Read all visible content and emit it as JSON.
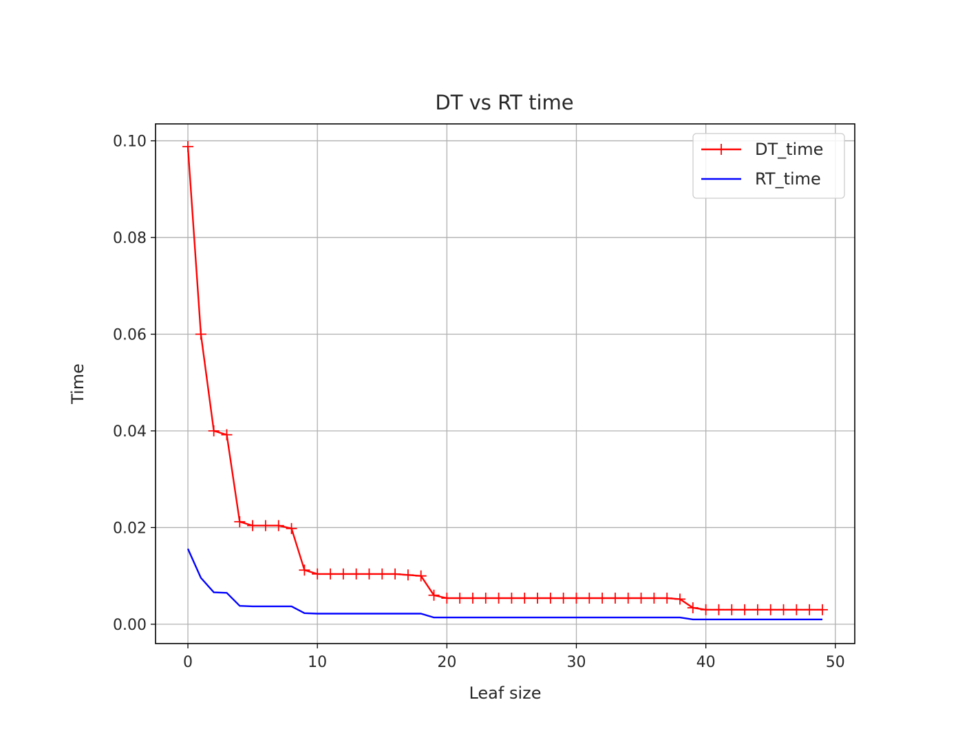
{
  "chart_data": {
    "type": "line",
    "title": "DT vs RT time",
    "xlabel": "Leaf size",
    "ylabel": "Time",
    "xlim": [
      -2.5,
      51.5
    ],
    "ylim": [
      -0.004,
      0.1035
    ],
    "xticks": [
      0,
      10,
      20,
      30,
      40,
      50
    ],
    "xtick_labels": [
      "0",
      "10",
      "20",
      "30",
      "40",
      "50"
    ],
    "yticks": [
      0.0,
      0.02,
      0.04,
      0.06,
      0.08,
      0.1
    ],
    "ytick_labels": [
      "0.00",
      "0.02",
      "0.04",
      "0.06",
      "0.08",
      "0.10"
    ],
    "grid": true,
    "legend_position": "top-right",
    "x": [
      0,
      1,
      2,
      3,
      4,
      5,
      6,
      7,
      8,
      9,
      10,
      11,
      12,
      13,
      14,
      15,
      16,
      17,
      18,
      19,
      20,
      21,
      22,
      23,
      24,
      25,
      26,
      27,
      28,
      29,
      30,
      31,
      32,
      33,
      34,
      35,
      36,
      37,
      38,
      39,
      40,
      41,
      42,
      43,
      44,
      45,
      46,
      47,
      48,
      49
    ],
    "series": [
      {
        "name": "DT_time",
        "color": "#ff0000",
        "marker": "+",
        "values": [
          0.0988,
          0.06,
          0.04,
          0.0392,
          0.0212,
          0.0204,
          0.0204,
          0.0204,
          0.0198,
          0.0112,
          0.0104,
          0.0104,
          0.0104,
          0.0104,
          0.0104,
          0.0104,
          0.0104,
          0.0102,
          0.01,
          0.006,
          0.0054,
          0.0054,
          0.0054,
          0.0054,
          0.0054,
          0.0054,
          0.0054,
          0.0054,
          0.0054,
          0.0054,
          0.0054,
          0.0054,
          0.0054,
          0.0054,
          0.0054,
          0.0054,
          0.0054,
          0.0054,
          0.0052,
          0.0034,
          0.003,
          0.003,
          0.003,
          0.003,
          0.003,
          0.003,
          0.003,
          0.003,
          0.003,
          0.003
        ]
      },
      {
        "name": "RT_time",
        "color": "#0000ff",
        "marker": "none",
        "values": [
          0.0156,
          0.0096,
          0.0066,
          0.0065,
          0.0038,
          0.0037,
          0.0037,
          0.0037,
          0.0037,
          0.0023,
          0.0022,
          0.0022,
          0.0022,
          0.0022,
          0.0022,
          0.0022,
          0.0022,
          0.0022,
          0.0022,
          0.0014,
          0.0014,
          0.0014,
          0.0014,
          0.0014,
          0.0014,
          0.0014,
          0.0014,
          0.0014,
          0.0014,
          0.0014,
          0.0014,
          0.0014,
          0.0014,
          0.0014,
          0.0014,
          0.0014,
          0.0014,
          0.0014,
          0.0014,
          0.001,
          0.001,
          0.001,
          0.001,
          0.001,
          0.001,
          0.001,
          0.001,
          0.001,
          0.001,
          0.001
        ]
      }
    ]
  }
}
